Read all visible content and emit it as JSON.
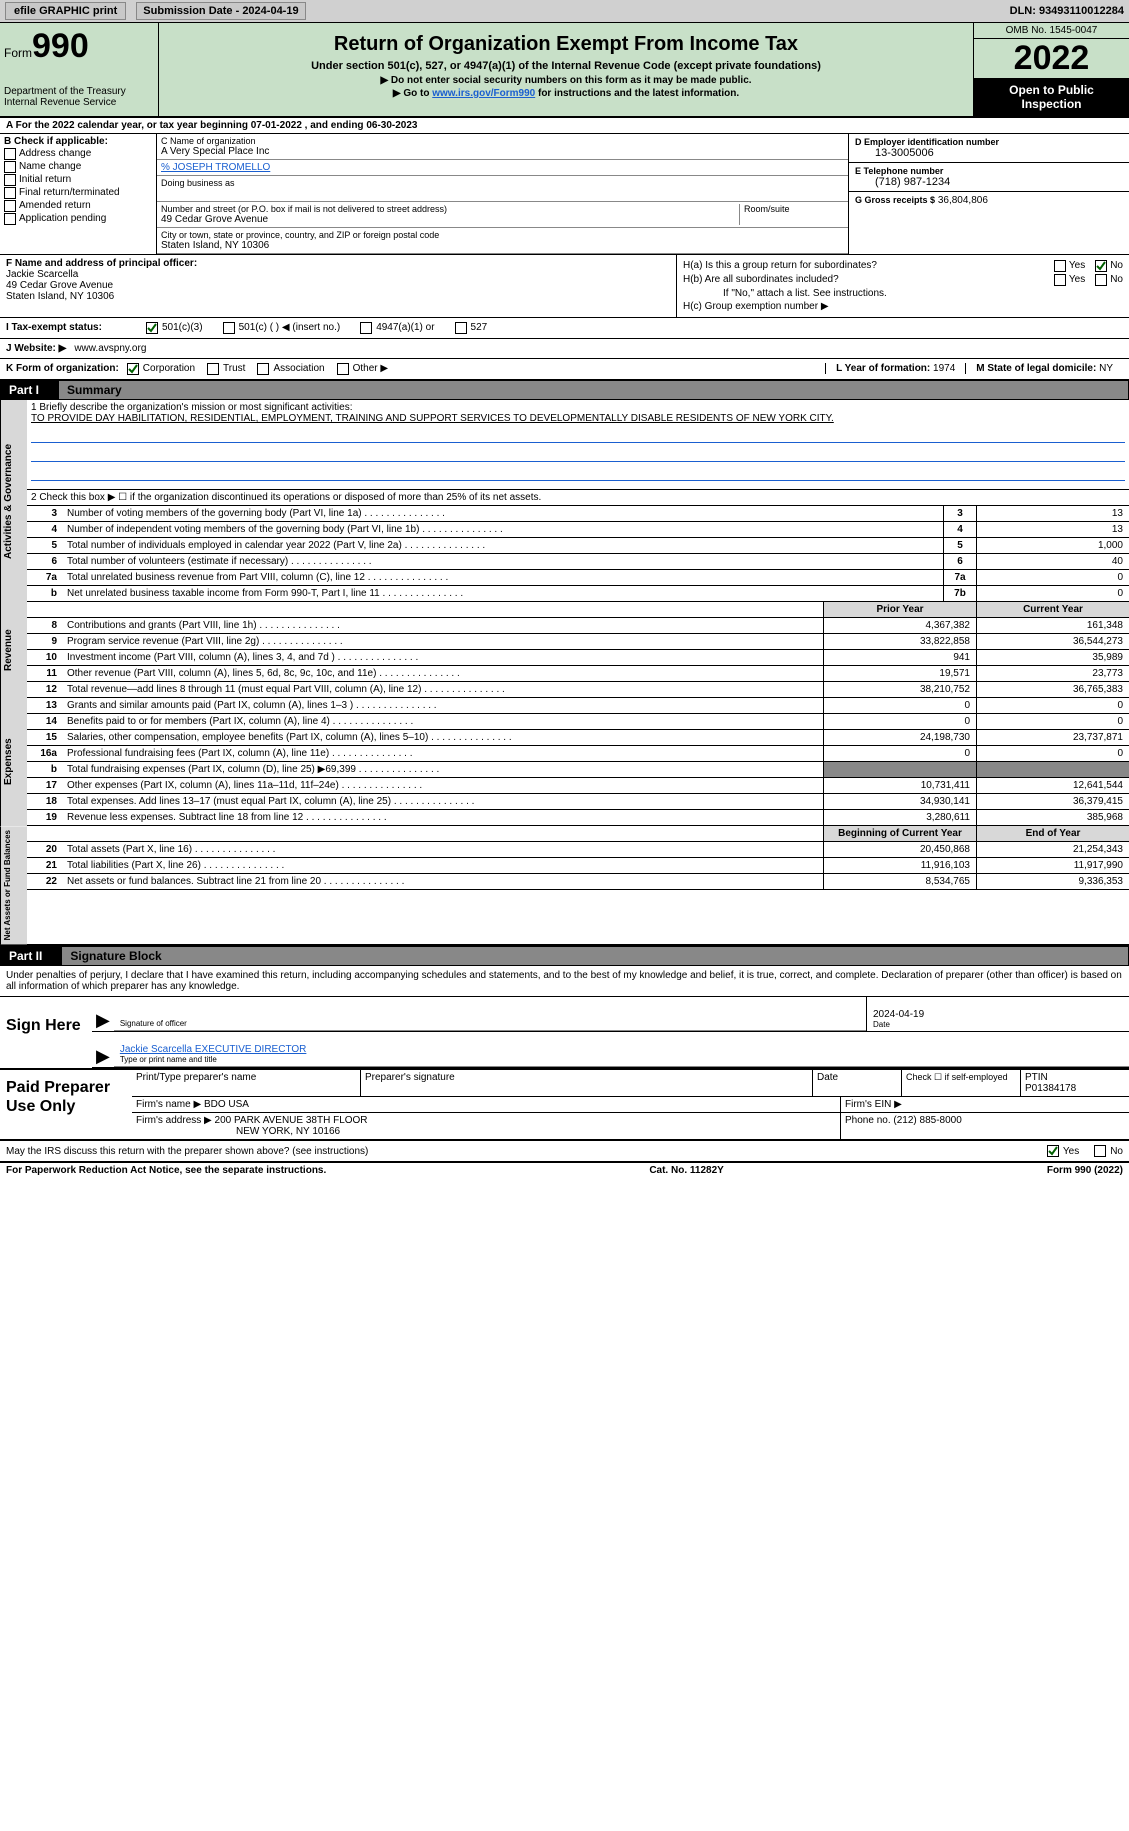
{
  "colors": {
    "form_green": "#c8e0c8",
    "link_blue": "#1a5fd0",
    "gray_bg": "#d8d8d8",
    "dark_gray": "#888888"
  },
  "topbar": {
    "efile_label": "efile GRAPHIC print",
    "submission_label": "Submission Date - 2024-04-19",
    "dln": "DLN: 93493110012284"
  },
  "header": {
    "form_label": "Form",
    "form_number": "990",
    "title": "Return of Organization Exempt From Income Tax",
    "subtitle": "Under section 501(c), 527, or 4947(a)(1) of the Internal Revenue Code (except private foundations)",
    "instr1": "▶ Do not enter social security numbers on this form as it may be made public.",
    "instr2_pre": "▶ Go to ",
    "instr2_link": "www.irs.gov/Form990",
    "instr2_post": " for instructions and the latest information.",
    "dept": "Department of the Treasury",
    "irs": "Internal Revenue Service",
    "omb": "OMB No. 1545-0047",
    "year": "2022",
    "open_public": "Open to Public Inspection"
  },
  "row_a": "A For the 2022 calendar year, or tax year beginning 07-01-2022   , and ending 06-30-2023",
  "col_b": {
    "label": "B Check if applicable:",
    "items": [
      "Address change",
      "Name change",
      "Initial return",
      "Final return/terminated",
      "Amended return",
      "Application pending"
    ]
  },
  "col_c": {
    "name_label": "C Name of organization",
    "name": "A Very Special Place Inc",
    "care_of": "% JOSEPH TROMELLO",
    "dba_label": "Doing business as",
    "street_label": "Number and street (or P.O. box if mail is not delivered to street address)",
    "room_label": "Room/suite",
    "street": "49 Cedar Grove Avenue",
    "city_label": "City or town, state or province, country, and ZIP or foreign postal code",
    "city": "Staten Island, NY  10306"
  },
  "col_d": {
    "ein_label": "D Employer identification number",
    "ein": "13-3005006",
    "phone_label": "E Telephone number",
    "phone": "(718) 987-1234",
    "gross_label": "G Gross receipts $",
    "gross": "36,804,806"
  },
  "col_f": {
    "label": "F Name and address of principal officer:",
    "name": "Jackie Scarcella",
    "street": "49 Cedar Grove Avenue",
    "city": "Staten Island, NY  10306"
  },
  "col_h": {
    "ha_label": "H(a)  Is this a group return for subordinates?",
    "hb_label": "H(b)  Are all subordinates included?",
    "hb_note": "If \"No,\" attach a list. See instructions.",
    "hc_label": "H(c)  Group exemption number ▶",
    "yes": "Yes",
    "no": "No"
  },
  "row_i": {
    "label": "I   Tax-exempt status:",
    "opt1": "501(c)(3)",
    "opt2": "501(c) (  ) ◀ (insert no.)",
    "opt3": "4947(a)(1) or",
    "opt4": "527"
  },
  "row_j": {
    "label": "J   Website: ▶",
    "value": "www.avspny.org"
  },
  "row_k": {
    "label": "K Form of organization:",
    "opts": [
      "Corporation",
      "Trust",
      "Association",
      "Other ▶"
    ],
    "year_label": "L Year of formation:",
    "year": "1974",
    "state_label": "M State of legal domicile:",
    "state": "NY"
  },
  "part1": {
    "num": "Part I",
    "title": "Summary"
  },
  "mission": {
    "label": "1   Briefly describe the organization's mission or most significant activities:",
    "text": "TO PROVIDE DAY HABILITATION, RESIDENTIAL, EMPLOYMENT, TRAINING AND SUPPORT SERVICES TO DEVELOPMENTALLY DISABLE RESIDENTS OF NEW YORK CITY."
  },
  "line2": "2   Check this box ▶ ☐  if the organization discontinued its operations or disposed of more than 25% of its net assets.",
  "summary_lines_gov": [
    {
      "num": "3",
      "desc": "Number of voting members of the governing body (Part VI, line 1a)",
      "box": "3",
      "val": "13"
    },
    {
      "num": "4",
      "desc": "Number of independent voting members of the governing body (Part VI, line 1b)",
      "box": "4",
      "val": "13"
    },
    {
      "num": "5",
      "desc": "Total number of individuals employed in calendar year 2022 (Part V, line 2a)",
      "box": "5",
      "val": "1,000"
    },
    {
      "num": "6",
      "desc": "Total number of volunteers (estimate if necessary)",
      "box": "6",
      "val": "40"
    },
    {
      "num": "7a",
      "desc": "Total unrelated business revenue from Part VIII, column (C), line 12",
      "box": "7a",
      "val": "0"
    },
    {
      "num": "b",
      "desc": "Net unrelated business taxable income from Form 990-T, Part I, line 11",
      "box": "7b",
      "val": "0"
    }
  ],
  "summary_headers": {
    "prior": "Prior Year",
    "current": "Current Year",
    "begin": "Beginning of Current Year",
    "end": "End of Year"
  },
  "revenue_lines": [
    {
      "num": "8",
      "desc": "Contributions and grants (Part VIII, line 1h)",
      "prior": "4,367,382",
      "current": "161,348"
    },
    {
      "num": "9",
      "desc": "Program service revenue (Part VIII, line 2g)",
      "prior": "33,822,858",
      "current": "36,544,273"
    },
    {
      "num": "10",
      "desc": "Investment income (Part VIII, column (A), lines 3, 4, and 7d )",
      "prior": "941",
      "current": "35,989"
    },
    {
      "num": "11",
      "desc": "Other revenue (Part VIII, column (A), lines 5, 6d, 8c, 9c, 10c, and 11e)",
      "prior": "19,571",
      "current": "23,773"
    },
    {
      "num": "12",
      "desc": "Total revenue—add lines 8 through 11 (must equal Part VIII, column (A), line 12)",
      "prior": "38,210,752",
      "current": "36,765,383"
    }
  ],
  "expense_lines": [
    {
      "num": "13",
      "desc": "Grants and similar amounts paid (Part IX, column (A), lines 1–3 )",
      "prior": "0",
      "current": "0"
    },
    {
      "num": "14",
      "desc": "Benefits paid to or for members (Part IX, column (A), line 4)",
      "prior": "0",
      "current": "0"
    },
    {
      "num": "15",
      "desc": "Salaries, other compensation, employee benefits (Part IX, column (A), lines 5–10)",
      "prior": "24,198,730",
      "current": "23,737,871"
    },
    {
      "num": "16a",
      "desc": "Professional fundraising fees (Part IX, column (A), line 11e)",
      "prior": "0",
      "current": "0"
    },
    {
      "num": "b",
      "desc": "Total fundraising expenses (Part IX, column (D), line 25) ▶69,399",
      "prior": "",
      "current": "",
      "gray": true
    },
    {
      "num": "17",
      "desc": "Other expenses (Part IX, column (A), lines 11a–11d, 11f–24e)",
      "prior": "10,731,411",
      "current": "12,641,544"
    },
    {
      "num": "18",
      "desc": "Total expenses. Add lines 13–17 (must equal Part IX, column (A), line 25)",
      "prior": "34,930,141",
      "current": "36,379,415"
    },
    {
      "num": "19",
      "desc": "Revenue less expenses. Subtract line 18 from line 12",
      "prior": "3,280,611",
      "current": "385,968"
    }
  ],
  "netassets_lines": [
    {
      "num": "20",
      "desc": "Total assets (Part X, line 16)",
      "prior": "20,450,868",
      "current": "21,254,343"
    },
    {
      "num": "21",
      "desc": "Total liabilities (Part X, line 26)",
      "prior": "11,916,103",
      "current": "11,917,990"
    },
    {
      "num": "22",
      "desc": "Net assets or fund balances. Subtract line 21 from line 20",
      "prior": "8,534,765",
      "current": "9,336,353"
    }
  ],
  "vtabs": {
    "gov": "Activities & Governance",
    "rev": "Revenue",
    "exp": "Expenses",
    "net": "Net Assets or Fund Balances"
  },
  "part2": {
    "num": "Part II",
    "title": "Signature Block"
  },
  "sig_declaration": "Under penalties of perjury, I declare that I have examined this return, including accompanying schedules and statements, and to the best of my knowledge and belief, it is true, correct, and complete. Declaration of preparer (other than officer) is based on all information of which preparer has any knowledge.",
  "sign": {
    "label": "Sign Here",
    "sig_of_officer": "Signature of officer",
    "date": "2024-04-19",
    "date_label": "Date",
    "name": "Jackie Scarcella  EXECUTIVE DIRECTOR",
    "name_label": "Type or print name and title"
  },
  "preparer": {
    "label": "Paid Preparer Use Only",
    "print_name_label": "Print/Type preparer's name",
    "sig_label": "Preparer's signature",
    "date_label": "Date",
    "check_label": "Check ☐ if self-employed",
    "ptin_label": "PTIN",
    "ptin": "P01384178",
    "firm_name_label": "Firm's name   ▶",
    "firm_name": "BDO USA",
    "firm_ein_label": "Firm's EIN ▶",
    "firm_addr_label": "Firm's address ▶",
    "firm_addr1": "200 PARK AVENUE 38TH FLOOR",
    "firm_addr2": "NEW YORK, NY  10166",
    "phone_label": "Phone no.",
    "phone": "(212) 885-8000"
  },
  "may_irs": "May the IRS discuss this return with the preparer shown above? (see instructions)",
  "footer": {
    "paperwork": "For Paperwork Reduction Act Notice, see the separate instructions.",
    "cat": "Cat. No. 11282Y",
    "form": "Form 990 (2022)"
  }
}
